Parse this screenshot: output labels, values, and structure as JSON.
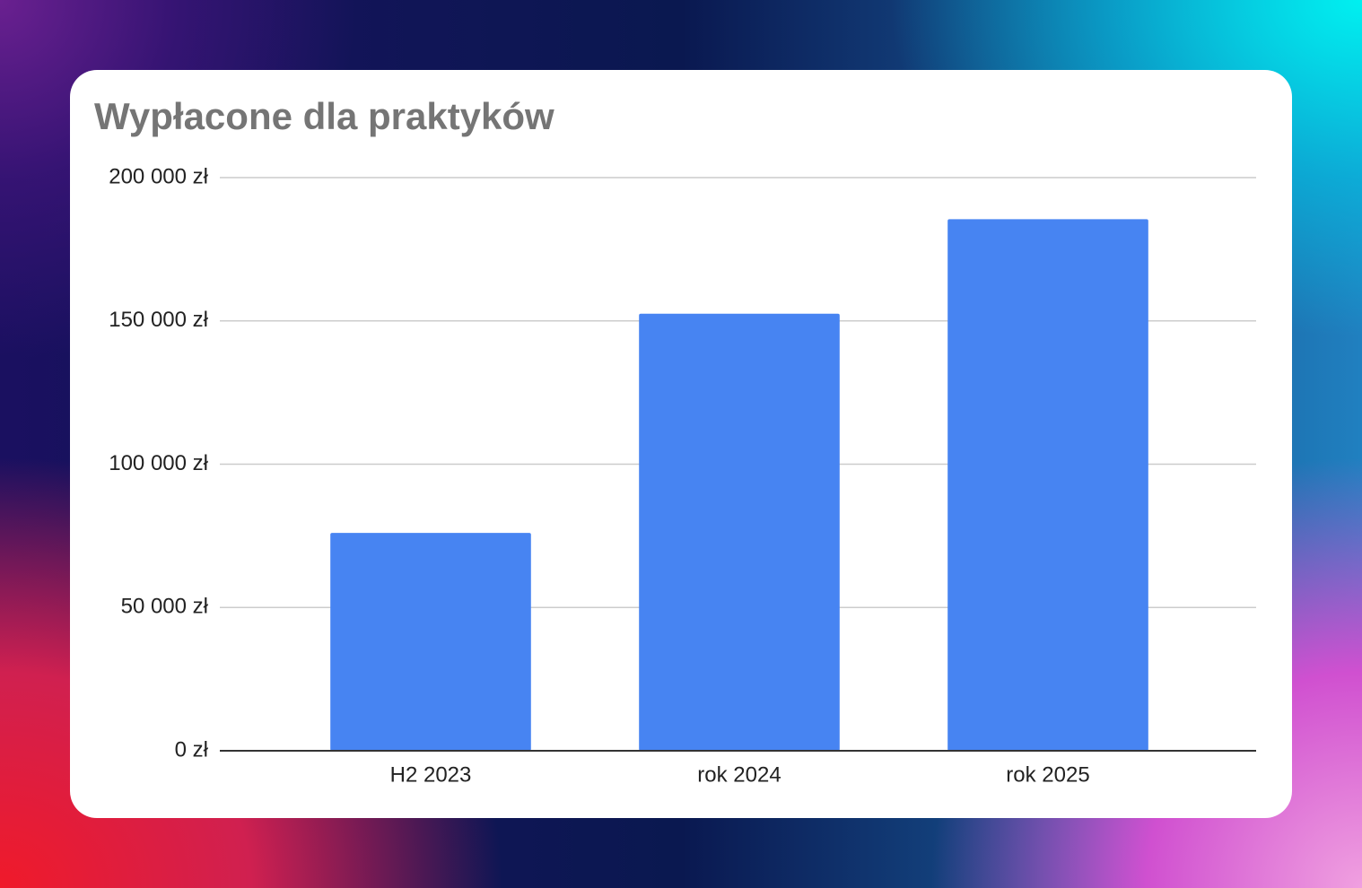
{
  "chart_data": {
    "type": "bar",
    "title": "Wypłacone dla praktyków",
    "categories": [
      "H2 2023",
      "rok 2024",
      "rok 2025"
    ],
    "values": [
      76000,
      152500,
      185500
    ],
    "color": "#4784f2",
    "ylim": [
      0,
      200000
    ],
    "yticks": [
      {
        "value": 0,
        "label": "0 zł"
      },
      {
        "value": 50000,
        "label": "50 000 zł"
      },
      {
        "value": 100000,
        "label": "100 000 zł"
      },
      {
        "value": 150000,
        "label": "150 000 zł"
      },
      {
        "value": 200000,
        "label": "200 000 zł"
      }
    ],
    "grid": true
  }
}
